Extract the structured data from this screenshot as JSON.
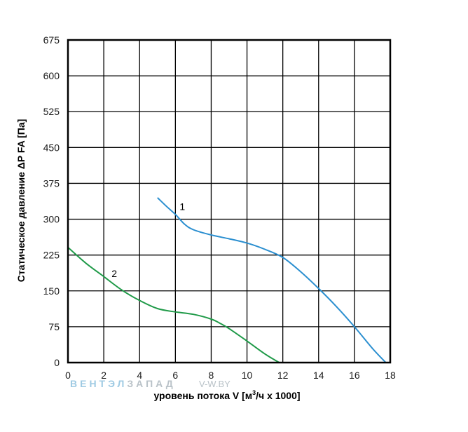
{
  "chart_data": {
    "type": "line",
    "xlabel_prefix": "уровень потока V [м",
    "xlabel_sup": "3",
    "xlabel_suffix": "/ч х 1000]",
    "ylabel": "Статическое давление ΔP FA [Па]",
    "xlim": [
      0,
      18
    ],
    "ylim": [
      0,
      675
    ],
    "x_ticks": [
      0,
      2,
      4,
      6,
      8,
      10,
      12,
      14,
      16,
      18
    ],
    "y_ticks": [
      0,
      75,
      150,
      225,
      300,
      375,
      450,
      525,
      600,
      675
    ],
    "x_tick_labels": [
      "0",
      "2",
      "4",
      "6",
      "8",
      "10",
      "12",
      "14",
      "16",
      "18"
    ],
    "y_tick_labels": [
      "0",
      "75",
      "150",
      "225",
      "300",
      "375",
      "450",
      "525",
      "600",
      "675"
    ],
    "grid": true,
    "series": [
      {
        "name": "1",
        "color": "#2b8fd0",
        "x": [
          5.0,
          5.5,
          6.0,
          6.5,
          7.0,
          8.0,
          9.0,
          10.0,
          11.0,
          12.0,
          13.0,
          14.0,
          15.0,
          16.0,
          17.0,
          17.75
        ],
        "y": [
          345,
          327,
          310,
          290,
          278,
          267,
          259,
          250,
          237,
          220,
          190,
          155,
          117,
          75,
          30,
          0
        ]
      },
      {
        "name": "2",
        "color": "#1f9a48",
        "x": [
          0.0,
          1.0,
          2.0,
          3.0,
          4.0,
          5.0,
          6.0,
          7.0,
          8.0,
          8.5,
          9.0,
          10.0,
          11.0,
          11.8
        ],
        "y": [
          241,
          208,
          180,
          152,
          130,
          113,
          106,
          101,
          91,
          82,
          71,
          45,
          18,
          0
        ]
      }
    ]
  },
  "watermark": {
    "brand_part1": "ВЕНТЭЛ",
    "brand_part2": "ЗАПАД",
    "url": "V-W.BY",
    "brand_color1": "#9ecae3",
    "brand_color2": "#b9c2c8"
  }
}
